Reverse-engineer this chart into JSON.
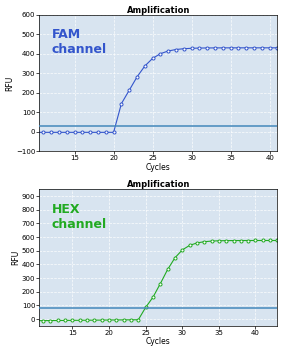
{
  "title": "Amplification",
  "fam_label": "FAM\nchannel",
  "hex_label": "HEX\nchannel",
  "fam_color": "#3355cc",
  "hex_color": "#22aa22",
  "threshold_color": "#4488bb",
  "ylabel": "RFU",
  "xlabel": "Cycles",
  "fam_ylim": [
    -100,
    600
  ],
  "fam_yticks": [
    -100,
    0,
    100,
    200,
    300,
    400,
    500,
    600
  ],
  "fam_xlim": [
    10.5,
    41
  ],
  "fam_xticks": [
    15,
    20,
    25,
    30,
    35,
    40
  ],
  "fam_threshold": 30,
  "hex_ylim": [
    -50,
    950
  ],
  "hex_yticks": [
    0,
    100,
    200,
    300,
    400,
    500,
    600,
    700,
    800,
    900
  ],
  "hex_xlim": [
    10.5,
    43
  ],
  "hex_xticks": [
    15,
    20,
    25,
    30,
    35,
    40
  ],
  "hex_threshold": 80,
  "background_color": "#d8e4f0",
  "title_fontsize": 6,
  "channel_label_fontsize": 9,
  "axis_fontsize": 5.5,
  "tick_fontsize": 5
}
